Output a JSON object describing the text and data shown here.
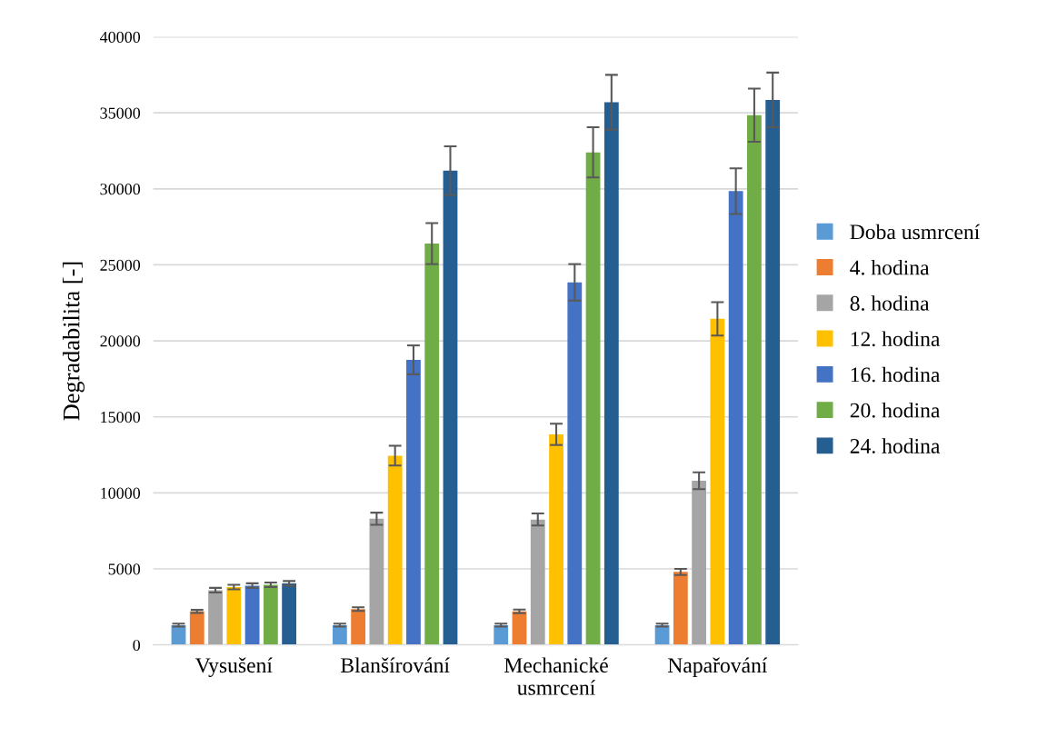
{
  "chart_data": {
    "type": "bar",
    "ylabel": "Degradabilita [-]",
    "categories": [
      "Vysušení",
      "Blanšírování",
      "Mechanické\nusmrcení",
      "Napařování"
    ],
    "ylim": [
      0,
      40000
    ],
    "yticks": [
      0,
      5000,
      10000,
      15000,
      20000,
      25000,
      30000,
      35000,
      40000
    ],
    "grid": "y",
    "legend": "right",
    "series": [
      {
        "name": "Doba usmrcení",
        "color": "#5b9bd5",
        "values": [
          1300,
          1300,
          1300,
          1300
        ],
        "errors": [
          100,
          100,
          100,
          100
        ]
      },
      {
        "name": "4. hodina",
        "color": "#ed7d31",
        "values": [
          2200,
          2350,
          2200,
          4800
        ],
        "errors": [
          100,
          120,
          120,
          200
        ]
      },
      {
        "name": "8. hodina",
        "color": "#a5a5a5",
        "values": [
          3600,
          8300,
          8250,
          10800
        ],
        "errors": [
          150,
          400,
          400,
          550
        ]
      },
      {
        "name": "12. hodina",
        "color": "#ffc000",
        "values": [
          3800,
          12450,
          13850,
          21450
        ],
        "errors": [
          150,
          650,
          700,
          1100
        ]
      },
      {
        "name": "16. hodina",
        "color": "#4472c4",
        "values": [
          3900,
          18750,
          23850,
          29850
        ],
        "errors": [
          150,
          950,
          1200,
          1500
        ]
      },
      {
        "name": "20. hodina",
        "color": "#70ad47",
        "values": [
          3950,
          26400,
          32400,
          34850
        ],
        "errors": [
          150,
          1350,
          1650,
          1750
        ]
      },
      {
        "name": "24. hodina",
        "color": "#255e91",
        "values": [
          4050,
          31200,
          35700,
          35850
        ],
        "errors": [
          150,
          1600,
          1800,
          1800
        ]
      }
    ]
  }
}
